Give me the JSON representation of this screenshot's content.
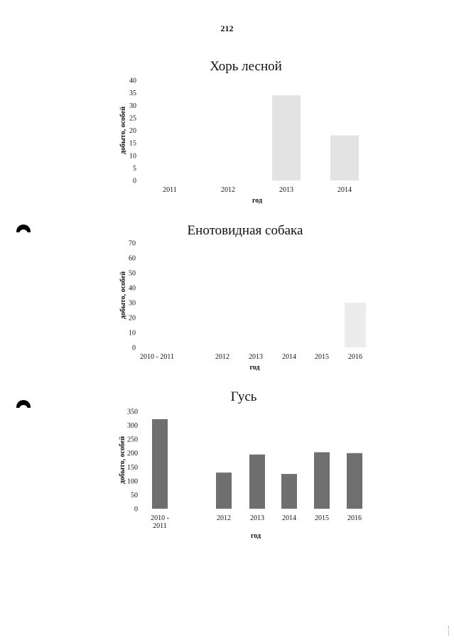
{
  "page": {
    "number": "212"
  },
  "chart_data": [
    {
      "type": "bar",
      "title": "Хорь лесной",
      "xlabel": "год",
      "ylabel": "добыто, особей",
      "categories": [
        "2011",
        "2012",
        "2013",
        "2014"
      ],
      "values": [
        0,
        0,
        34,
        18
      ],
      "ylim": [
        0,
        40
      ],
      "yticks": [
        "0",
        "5",
        "10",
        "15",
        "20",
        "25",
        "30",
        "35",
        "40"
      ],
      "bar_color": "#d9d9d9",
      "grid": false,
      "legend": "none"
    },
    {
      "type": "bar",
      "title": "Енотовидная собака",
      "xlabel": "год",
      "ylabel": "добыто, особей",
      "categories": [
        "2010 - 2011",
        "2012",
        "2013",
        "2014",
        "2015",
        "2016"
      ],
      "values": [
        0,
        0,
        0,
        0,
        0,
        30
      ],
      "ylim": [
        0,
        70
      ],
      "yticks": [
        "0",
        "10",
        "20",
        "30",
        "40",
        "50",
        "60",
        "70"
      ],
      "bar_color": "#e6e6e6",
      "grid": false,
      "legend": "none"
    },
    {
      "type": "bar",
      "title": "Гусь",
      "xlabel": "год",
      "ylabel": "добыто, особей",
      "categories": [
        "2010 - 2011",
        "2012",
        "2013",
        "2014",
        "2015",
        "2016"
      ],
      "category_lines": [
        [
          "2010 -",
          "2011"
        ],
        [
          "2012"
        ],
        [
          "2013"
        ],
        [
          "2014"
        ],
        [
          "2015"
        ],
        [
          "2016"
        ]
      ],
      "values": [
        322,
        130,
        195,
        125,
        203,
        200
      ],
      "ylim": [
        0,
        350
      ],
      "yticks": [
        "0",
        "50",
        "100",
        "150",
        "200",
        "250",
        "300",
        "350"
      ],
      "bar_color": "#6f6f6f",
      "grid": false,
      "legend": "none"
    }
  ]
}
